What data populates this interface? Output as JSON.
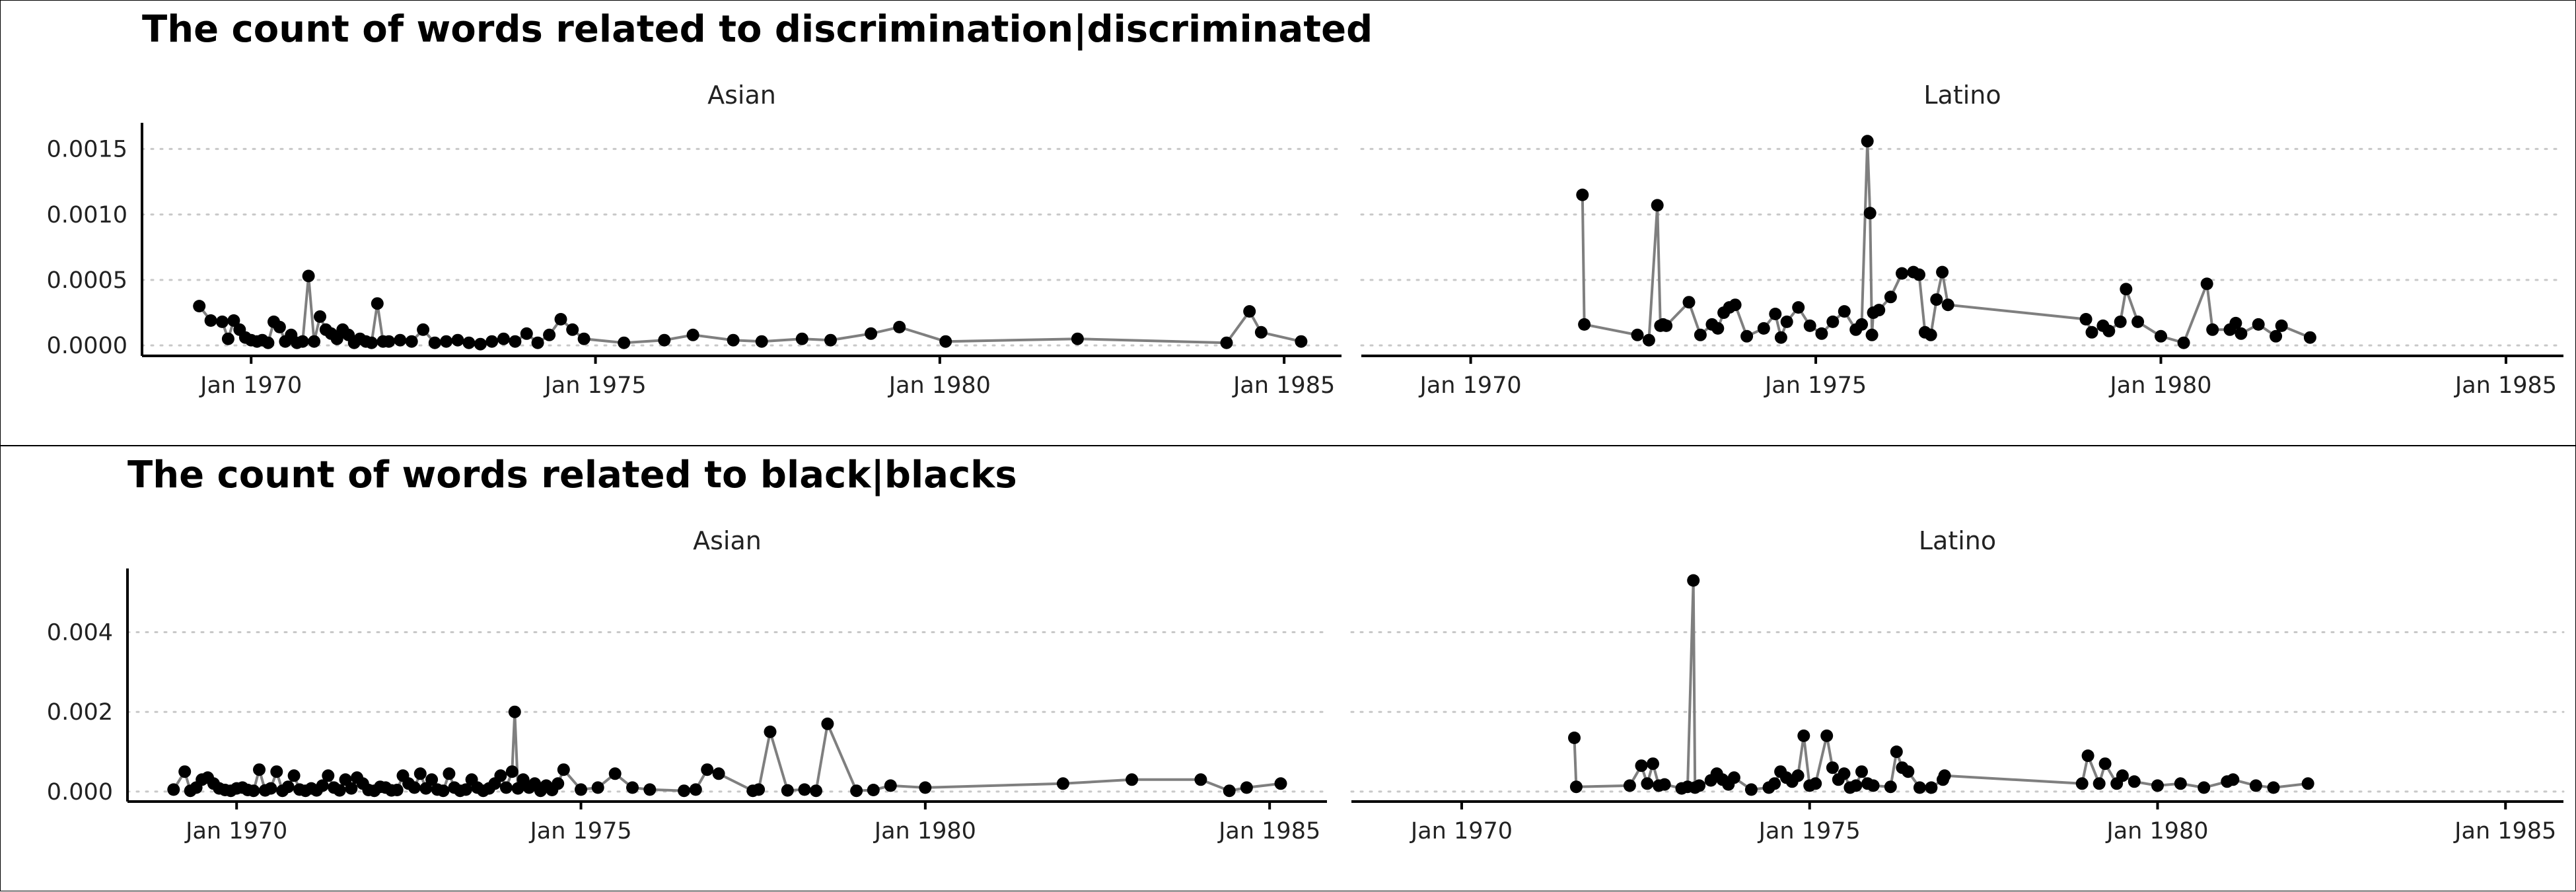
{
  "chart_data": [
    {
      "type": "line",
      "title": "The count of words related to discrimination|discriminated",
      "ylim": [
        -8e-05,
        0.0017
      ],
      "yticks": [
        0,
        0.0005,
        0.001,
        0.0015
      ],
      "ytick_labels": [
        "0.0000",
        "0.0005",
        "0.0010",
        "0.0015"
      ],
      "xticks": [
        "1970-01-01",
        "1975-01-01",
        "1980-01-01",
        "1985-01-01"
      ],
      "xtick_labels": [
        "Jan 1970",
        "Jan 1975",
        "Jan 1980",
        "Jan 1985"
      ],
      "grid": "horizontal-dotted",
      "panels": [
        {
          "facet": "Asian",
          "xlim": [
            "1968-06-01",
            "1985-11-01"
          ],
          "x": [
            "1969-04-01",
            "1969-06-01",
            "1969-08-01",
            "1969-09-01",
            "1969-10-01",
            "1969-11-01",
            "1969-12-01",
            "1970-01-01",
            "1970-02-01",
            "1970-03-01",
            "1970-04-01",
            "1970-05-01",
            "1970-06-01",
            "1970-07-01",
            "1970-08-01",
            "1970-09-01",
            "1970-10-01",
            "1970-11-01",
            "1970-12-01",
            "1971-01-01",
            "1971-02-01",
            "1971-03-01",
            "1971-04-01",
            "1971-05-01",
            "1971-06-01",
            "1971-07-01",
            "1971-08-01",
            "1971-09-01",
            "1971-10-01",
            "1971-11-01",
            "1971-12-01",
            "1972-01-01",
            "1972-03-01",
            "1972-05-01",
            "1972-07-01",
            "1972-09-01",
            "1972-11-01",
            "1973-01-01",
            "1973-03-01",
            "1973-05-01",
            "1973-07-01",
            "1973-09-01",
            "1973-11-01",
            "1974-01-01",
            "1974-03-01",
            "1974-05-01",
            "1974-07-01",
            "1974-09-01",
            "1974-11-01",
            "1975-06-01",
            "1976-01-01",
            "1976-06-01",
            "1977-01-01",
            "1977-06-01",
            "1978-01-01",
            "1978-06-01",
            "1979-01-01",
            "1979-06-01",
            "1980-02-01",
            "1982-01-01",
            "1984-03-01",
            "1984-07-01",
            "1984-09-01",
            "1985-04-01"
          ],
          "values": [
            0.0003,
            0.00019,
            0.00018,
            5e-05,
            0.00019,
            0.00012,
            6e-05,
            4e-05,
            3e-05,
            4e-05,
            2e-05,
            0.00018,
            0.00014,
            3e-05,
            8e-05,
            2e-05,
            3e-05,
            0.00053,
            3e-05,
            0.00022,
            0.00012,
            9e-05,
            5e-05,
            0.00012,
            8e-05,
            2e-05,
            5e-05,
            3e-05,
            2e-05,
            0.00032,
            3e-05,
            3e-05,
            4e-05,
            3e-05,
            0.00012,
            2e-05,
            3e-05,
            4e-05,
            2e-05,
            1e-05,
            3e-05,
            5e-05,
            3e-05,
            9e-05,
            2e-05,
            8e-05,
            0.0002,
            0.00012,
            5e-05,
            2e-05,
            4e-05,
            8e-05,
            4e-05,
            3e-05,
            5e-05,
            4e-05,
            9e-05,
            0.00014,
            3e-05,
            5e-05,
            2e-05,
            0.00026,
            0.0001,
            3e-05
          ]
        },
        {
          "facet": "Latino",
          "xlim": [
            "1968-06-01",
            "1985-11-01"
          ],
          "x": [
            "1971-08-15",
            "1971-08-25",
            "1972-06-01",
            "1972-08-01",
            "1972-09-15",
            "1972-10-01",
            "1972-10-15",
            "1972-11-01",
            "1973-03-01",
            "1973-05-01",
            "1973-07-01",
            "1973-08-01",
            "1973-09-01",
            "1973-10-01",
            "1973-11-01",
            "1974-01-01",
            "1974-04-01",
            "1974-06-01",
            "1974-07-01",
            "1974-08-01",
            "1974-10-01",
            "1974-12-01",
            "1975-02-01",
            "1975-04-01",
            "1975-06-01",
            "1975-08-01",
            "1975-09-01",
            "1975-10-01",
            "1975-10-15",
            "1975-10-25",
            "1975-11-01",
            "1975-12-01",
            "1976-02-01",
            "1976-04-01",
            "1976-06-01",
            "1976-07-01",
            "1976-08-01",
            "1976-09-01",
            "1976-10-01",
            "1976-11-01",
            "1976-12-01",
            "1978-12-01",
            "1979-01-01",
            "1979-03-01",
            "1979-04-01",
            "1979-06-01",
            "1979-07-01",
            "1979-09-01",
            "1980-01-01",
            "1980-05-01",
            "1980-09-01",
            "1980-10-01",
            "1981-01-01",
            "1981-02-01",
            "1981-03-01",
            "1981-06-01",
            "1981-09-01",
            "1981-10-01",
            "1982-03-01"
          ],
          "values": [
            0.00115,
            0.00016,
            8e-05,
            4e-05,
            0.00107,
            0.00015,
            0.00016,
            0.00015,
            0.00033,
            8e-05,
            0.00016,
            0.00013,
            0.00025,
            0.00029,
            0.00031,
            7e-05,
            0.00013,
            0.00024,
            6e-05,
            0.00018,
            0.00029,
            0.00015,
            9e-05,
            0.00018,
            0.00026,
            0.00012,
            0.00016,
            0.00156,
            0.00101,
            8e-05,
            0.00025,
            0.00027,
            0.00037,
            0.00055,
            0.00056,
            0.00054,
            0.0001,
            8e-05,
            0.00035,
            0.00056,
            0.00031,
            0.0002,
            0.0001,
            0.00015,
            0.00011,
            0.00018,
            0.00043,
            0.00018,
            7e-05,
            2e-05,
            0.00047,
            0.00012,
            0.00012,
            0.00017,
            9e-05,
            0.00016,
            7e-05,
            0.00015,
            6e-05
          ]
        }
      ]
    },
    {
      "type": "line",
      "title": "The count of words related to black|blacks",
      "ylim": [
        -0.00025,
        0.0056
      ],
      "yticks": [
        0,
        0.002,
        0.004
      ],
      "ytick_labels": [
        "0.000",
        "0.002",
        "0.004"
      ],
      "xticks": [
        "1970-01-01",
        "1975-01-01",
        "1980-01-01",
        "1985-01-01"
      ],
      "xtick_labels": [
        "Jan 1970",
        "Jan 1975",
        "Jan 1980",
        "Jan 1985"
      ],
      "grid": "horizontal-dotted",
      "panels": [
        {
          "facet": "Asian",
          "xlim": [
            "1968-06-01",
            "1985-11-01"
          ],
          "x": [
            "1969-02-01",
            "1969-04-01",
            "1969-05-01",
            "1969-06-01",
            "1969-07-01",
            "1969-08-01",
            "1969-09-01",
            "1969-10-01",
            "1969-11-01",
            "1969-12-01",
            "1970-01-01",
            "1970-02-01",
            "1970-03-01",
            "1970-04-01",
            "1970-05-01",
            "1970-06-01",
            "1970-07-01",
            "1970-08-01",
            "1970-09-01",
            "1970-10-01",
            "1970-11-01",
            "1970-12-01",
            "1971-01-01",
            "1971-02-01",
            "1971-03-01",
            "1971-04-01",
            "1971-05-01",
            "1971-06-01",
            "1971-07-01",
            "1971-08-01",
            "1971-09-01",
            "1971-10-01",
            "1971-11-01",
            "1971-12-01",
            "1972-01-01",
            "1972-02-01",
            "1972-03-01",
            "1972-04-01",
            "1972-05-01",
            "1972-06-01",
            "1972-07-01",
            "1972-08-01",
            "1972-09-01",
            "1972-10-01",
            "1972-11-01",
            "1972-12-01",
            "1973-01-01",
            "1973-02-01",
            "1973-03-01",
            "1973-04-01",
            "1973-05-01",
            "1973-06-01",
            "1973-07-01",
            "1973-08-01",
            "1973-09-01",
            "1973-10-01",
            "1973-11-01",
            "1973-12-01",
            "1974-01-01",
            "1974-01-15",
            "1974-02-01",
            "1974-03-01",
            "1974-04-01",
            "1974-05-01",
            "1974-06-01",
            "1974-07-01",
            "1974-08-01",
            "1974-09-01",
            "1974-10-01",
            "1975-01-01",
            "1975-04-01",
            "1975-07-01",
            "1975-10-01",
            "1976-01-01",
            "1976-07-01",
            "1976-09-01",
            "1976-11-01",
            "1977-01-01",
            "1977-07-01",
            "1977-08-01",
            "1977-10-01",
            "1978-01-01",
            "1978-04-01",
            "1978-06-01",
            "1978-08-01",
            "1979-01-01",
            "1979-04-01",
            "1979-07-01",
            "1980-01-01",
            "1982-01-01",
            "1983-01-01",
            "1984-01-01",
            "1984-06-01",
            "1984-09-01",
            "1985-03-01"
          ],
          "values": [
            5e-05,
            0.0005,
            2e-05,
            0.0001,
            0.0003,
            0.00035,
            0.0002,
            8e-05,
            4e-05,
            2e-05,
            8e-05,
            0.0001,
            4e-05,
            2e-05,
            0.00055,
            3e-05,
            8e-05,
            0.0005,
            2e-05,
            0.00012,
            0.0004,
            5e-05,
            2e-05,
            8e-05,
            3e-05,
            0.00015,
            0.0004,
            0.0001,
            3e-05,
            0.0003,
            8e-05,
            0.00035,
            0.0002,
            4e-05,
            2e-05,
            0.00012,
            0.0001,
            3e-05,
            4e-05,
            0.0004,
            0.0002,
            0.0001,
            0.00045,
            8e-05,
            0.0003,
            5e-05,
            2e-05,
            0.00045,
            0.0001,
            2e-05,
            5e-05,
            0.0003,
            0.0001,
            2e-05,
            8e-05,
            0.0002,
            0.0004,
            0.0001,
            0.0005,
            0.002,
            8e-05,
            0.0003,
            0.0001,
            0.0002,
            2e-05,
            0.00015,
            4e-05,
            0.0002,
            0.00055,
            5e-05,
            0.0001,
            0.00045,
            0.0001,
            5e-05,
            2e-05,
            5e-05,
            0.00055,
            0.00045,
            2e-05,
            5e-05,
            0.0015,
            3e-05,
            5e-05,
            2e-05,
            0.0017,
            2e-05,
            4e-05,
            0.00015,
            0.0001,
            0.0002,
            0.0003,
            0.0003,
            2e-05,
            0.0001,
            0.0002
          ]
        },
        {
          "facet": "Latino",
          "xlim": [
            "1968-06-01",
            "1985-11-01"
          ],
          "x": [
            "1971-08-15",
            "1971-08-25",
            "1972-06-01",
            "1972-08-01",
            "1972-09-01",
            "1972-10-01",
            "1972-11-01",
            "1972-12-01",
            "1973-03-01",
            "1973-04-01",
            "1973-05-01",
            "1973-05-10",
            "1973-06-01",
            "1973-08-01",
            "1973-09-01",
            "1973-10-01",
            "1973-11-01",
            "1973-12-01",
            "1974-03-01",
            "1974-06-01",
            "1974-07-01",
            "1974-08-01",
            "1974-09-01",
            "1974-10-01",
            "1974-11-01",
            "1974-12-01",
            "1975-01-01",
            "1975-02-01",
            "1975-04-01",
            "1975-05-01",
            "1975-06-01",
            "1975-07-01",
            "1975-08-01",
            "1975-09-01",
            "1975-10-01",
            "1975-11-01",
            "1975-12-01",
            "1976-03-01",
            "1976-04-01",
            "1976-05-01",
            "1976-06-01",
            "1976-08-01",
            "1976-10-01",
            "1976-12-01",
            "1976-12-10",
            "1978-12-01",
            "1979-01-01",
            "1979-03-01",
            "1979-04-01",
            "1979-06-01",
            "1979-07-01",
            "1979-09-01",
            "1980-01-01",
            "1980-05-01",
            "1980-09-01",
            "1981-01-01",
            "1981-02-01",
            "1981-06-01",
            "1981-09-01",
            "1982-03-01"
          ],
          "values": [
            0.00135,
            0.00012,
            0.00015,
            0.00065,
            0.0002,
            0.0007,
            0.00015,
            0.00018,
            8e-05,
            0.00012,
            0.0053,
            0.0001,
            0.00015,
            0.00028,
            0.00045,
            0.0003,
            0.00018,
            0.00035,
            5e-05,
            0.0001,
            0.0002,
            0.0005,
            0.00035,
            0.00025,
            0.0004,
            0.0014,
            0.00015,
            0.0002,
            0.0014,
            0.0006,
            0.0003,
            0.00045,
            0.0001,
            0.00015,
            0.0005,
            0.0002,
            0.00015,
            0.00012,
            0.001,
            0.0006,
            0.0005,
            0.0001,
            0.0001,
            0.0003,
            0.0004,
            0.0002,
            0.0009,
            0.0002,
            0.0007,
            0.0002,
            0.0004,
            0.00025,
            0.00015,
            0.0002,
            0.0001,
            0.00025,
            0.0003,
            0.00015,
            0.0001,
            0.0002
          ]
        }
      ]
    }
  ]
}
